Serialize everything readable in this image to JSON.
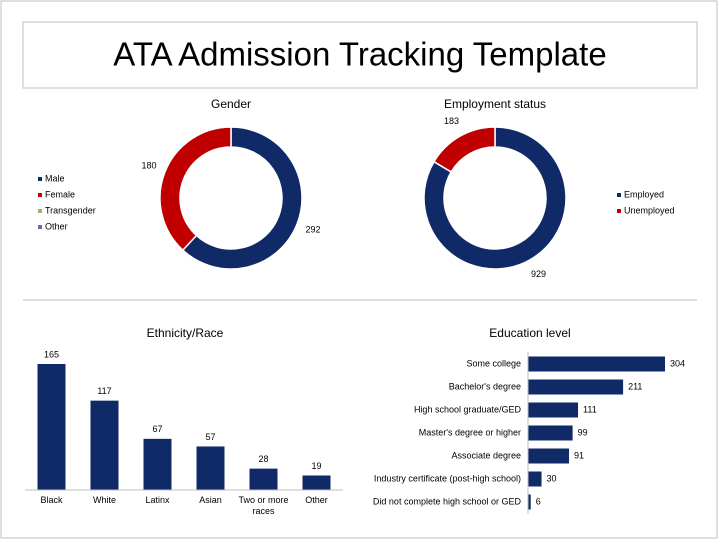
{
  "title": "ATA Admission Tracking Template",
  "chart_data": [
    {
      "type": "donut",
      "title": "Gender",
      "categories": [
        "Male",
        "Female",
        "Transgender",
        "Other"
      ],
      "values": [
        292,
        180,
        0,
        0
      ],
      "colors": [
        "#0f2a66",
        "#c00000",
        "#9bbb59",
        "#8064a2"
      ],
      "legend": "left"
    },
    {
      "type": "donut",
      "title": "Employment status",
      "categories": [
        "Employed",
        "Unemployed"
      ],
      "values": [
        929,
        183
      ],
      "colors": [
        "#0f2a66",
        "#c00000"
      ],
      "legend": "right"
    },
    {
      "type": "bar",
      "title": "Ethnicity/Race",
      "categories": [
        "Black",
        "White",
        "Latinx",
        "Asian",
        "Two or more races",
        "Other"
      ],
      "values": [
        165,
        117,
        67,
        57,
        28,
        19
      ],
      "color": "#0f2a66"
    },
    {
      "type": "hbar",
      "title": "Education level",
      "categories": [
        "Some college",
        "Bachelor's degree",
        "High school graduate/GED",
        "Master's degree or higher",
        "Associate degree",
        "Industry certificate (post-high school)",
        "Did not complete high school or GED"
      ],
      "values": [
        304,
        211,
        111,
        99,
        91,
        30,
        6
      ],
      "color": "#0f2a66"
    }
  ]
}
